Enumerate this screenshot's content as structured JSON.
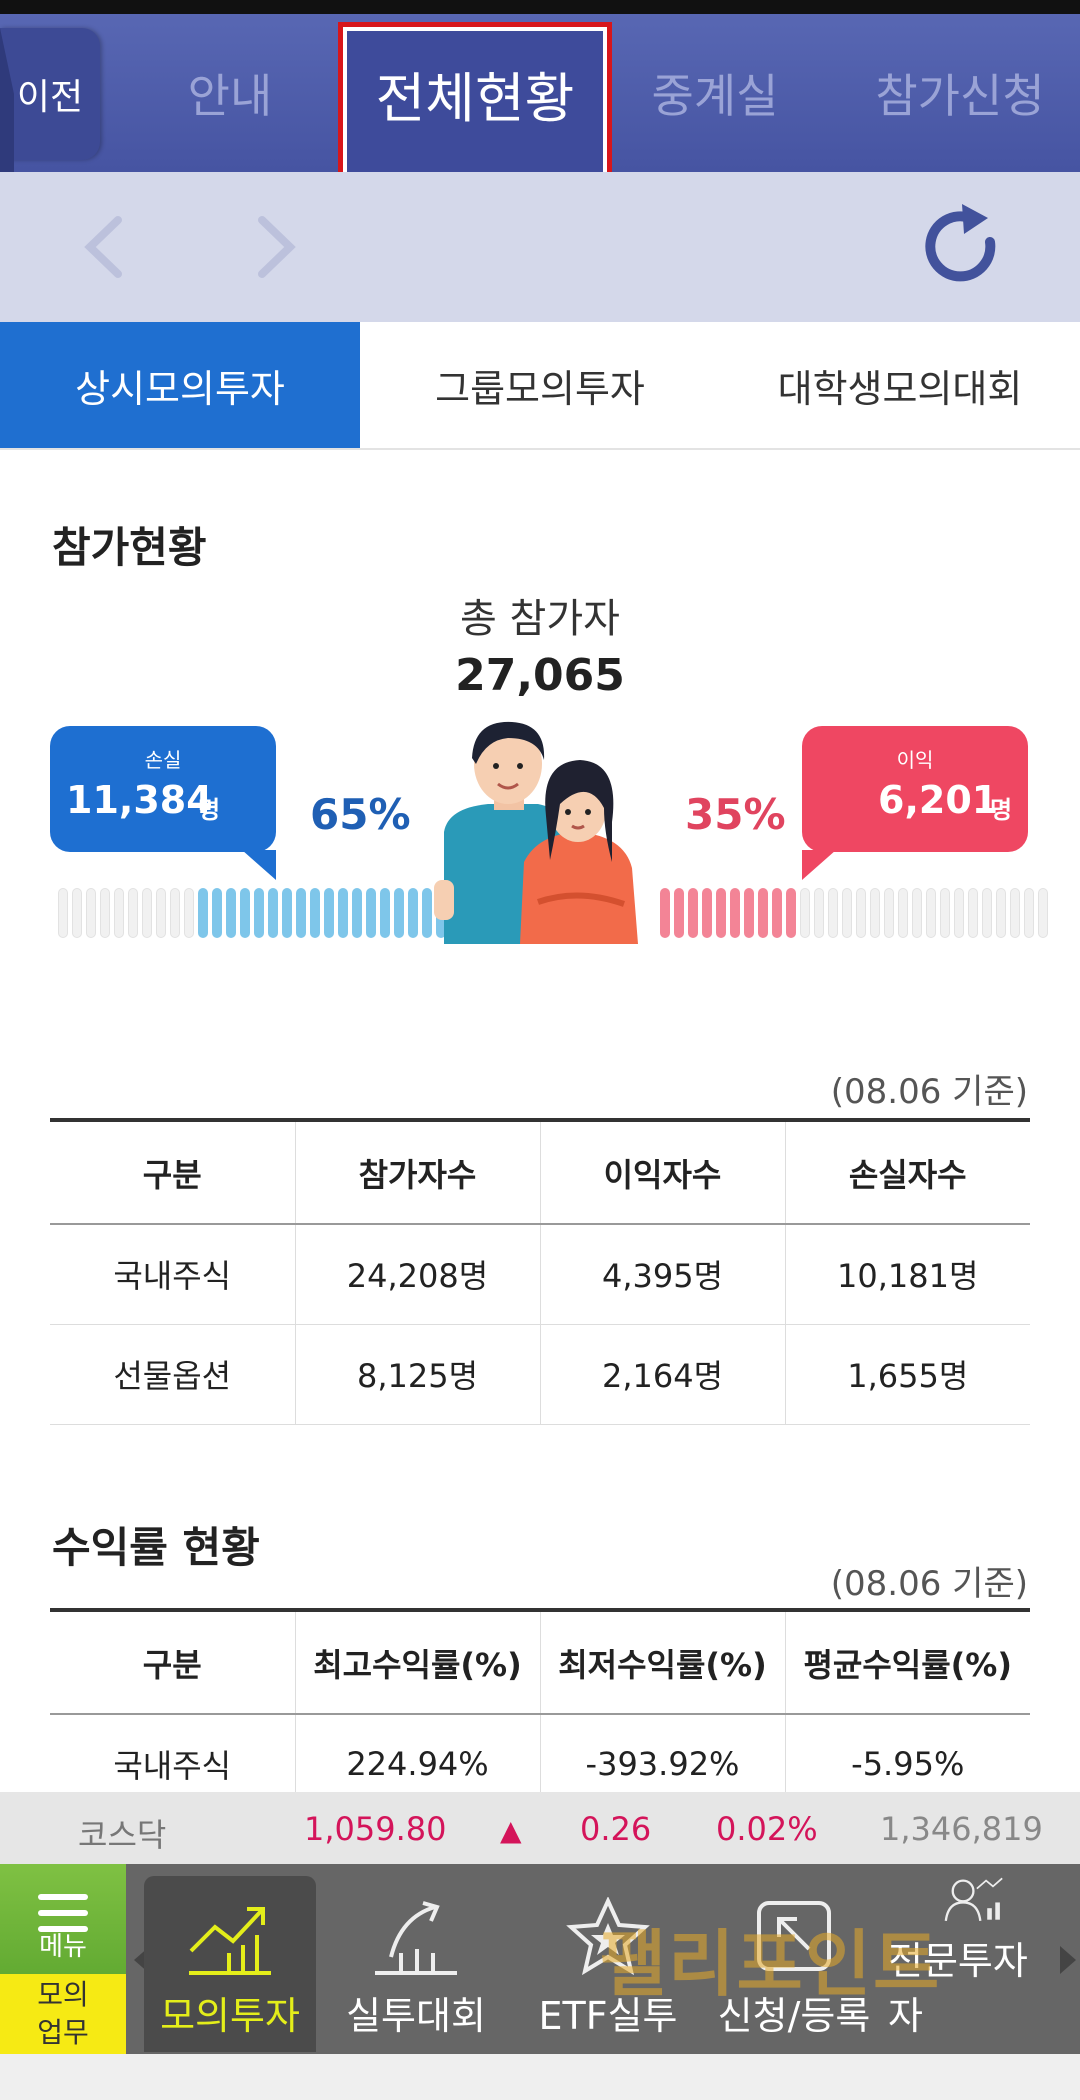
{
  "header": {
    "back_label": "이전",
    "tabs": [
      {
        "label": "안내"
      },
      {
        "label": "전체현황"
      },
      {
        "label": "중계실"
      },
      {
        "label": "참가신청"
      }
    ]
  },
  "segments": [
    "상시모의투자",
    "그룹모의투자",
    "대학생모의대회"
  ],
  "participation": {
    "title": "참가현황",
    "total_label": "총 참가자",
    "total_value": "27,065",
    "loss_label": "손실",
    "loss_value": "11,384",
    "loss_unit": "명",
    "loss_pct": "65%",
    "gain_label": "이익",
    "gain_value": "6,201",
    "gain_unit": "명",
    "gain_pct": "35%",
    "basis": "(08.06 기준)"
  },
  "participation_table": {
    "headers": [
      "구분",
      "참가자수",
      "이익자수",
      "손실자수"
    ],
    "rows": [
      [
        "국내주식",
        "24,208명",
        "4,395명",
        "10,181명"
      ],
      [
        "선물옵션",
        "8,125명",
        "2,164명",
        "1,655명"
      ]
    ]
  },
  "returns": {
    "title": "수익률 현황",
    "basis": "(08.06 기준)",
    "headers": [
      "구분",
      "최고수익률(%)",
      "최저수익률(%)",
      "평균수익률(%)"
    ],
    "rows": [
      [
        "국내주식",
        "224.94%",
        "-393.92%",
        "-5.95%"
      ]
    ]
  },
  "ticker": {
    "name": "코스닥",
    "price": "1,059.80",
    "arrow": "▲",
    "change": "0.26",
    "change_pct": "0.02%",
    "volume": "1,346,819"
  },
  "bottom_nav": {
    "menu_label": "메뉴",
    "work_label_1": "모의",
    "work_label_2": "업무",
    "items": [
      {
        "label": "모의투자",
        "icon": "chart-up-icon"
      },
      {
        "label": "실투대회",
        "icon": "growth-arrow-icon"
      },
      {
        "label": "ETF실투",
        "icon": "star-badge-icon"
      },
      {
        "label": "신청/등록",
        "icon": "register-icon"
      },
      {
        "label": "전문투자자",
        "icon": "expert-icon"
      }
    ],
    "watermark": "팰리포인트"
  },
  "colors": {
    "header_bg": "#4654a2",
    "active_segment": "#1f6fd0",
    "loss": "#1e6fd1",
    "gain": "#ef4762",
    "ticker_red": "#d4145a",
    "nav_active_text": "#e4ee1a"
  }
}
